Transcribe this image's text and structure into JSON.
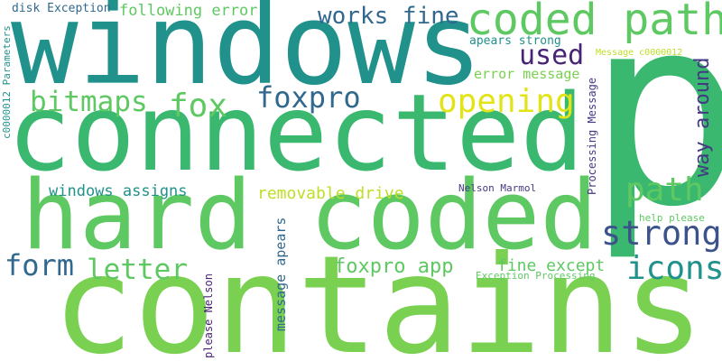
{
  "colors": {
    "background": "#ffffff",
    "teal": "#21918c",
    "teal_dark": "#1f8a8c",
    "green": "#5ec962",
    "green_mid": "#3ab86f",
    "green_light": "#7ad151",
    "yellow": "#e2e418",
    "yellow_green": "#bddf26",
    "blue": "#3b528b",
    "blue_dark": "#31688e",
    "purple": "#482475",
    "indigo": "#443983"
  },
  "words": {
    "windows": "windows",
    "connected": "connected",
    "contains": "contains",
    "hard_coded": "hard coded",
    "p": "p",
    "coded_path": "coded path",
    "works_fine": "works fine",
    "following_error": "following error",
    "disk_exception": "disk Exception",
    "used": "used",
    "opening": "opening",
    "bitmaps": "bitmaps",
    "fox": "fox",
    "foxpro": "foxpro",
    "path": "path",
    "strong": "strong",
    "way_around": "way around",
    "windows_assigns": "windows assigns",
    "removable_drive": "removable drive",
    "form": "form",
    "letter": "letter",
    "foxpro_app": "foxpro app",
    "fine_except": "fine except",
    "icons": "icons",
    "apears_strong": "apears strong",
    "error_message": "error message",
    "message_c0000012": "Message c0000012",
    "c0000012_parameters": "c0000012 Parameters",
    "processing_message": "Processing Message",
    "nelson_marmol": "Nelson Marmol",
    "help_please": "help please",
    "exception_processing": "Exception Processing",
    "message_apears": "message apears",
    "please_nelson": "please Nelson"
  }
}
